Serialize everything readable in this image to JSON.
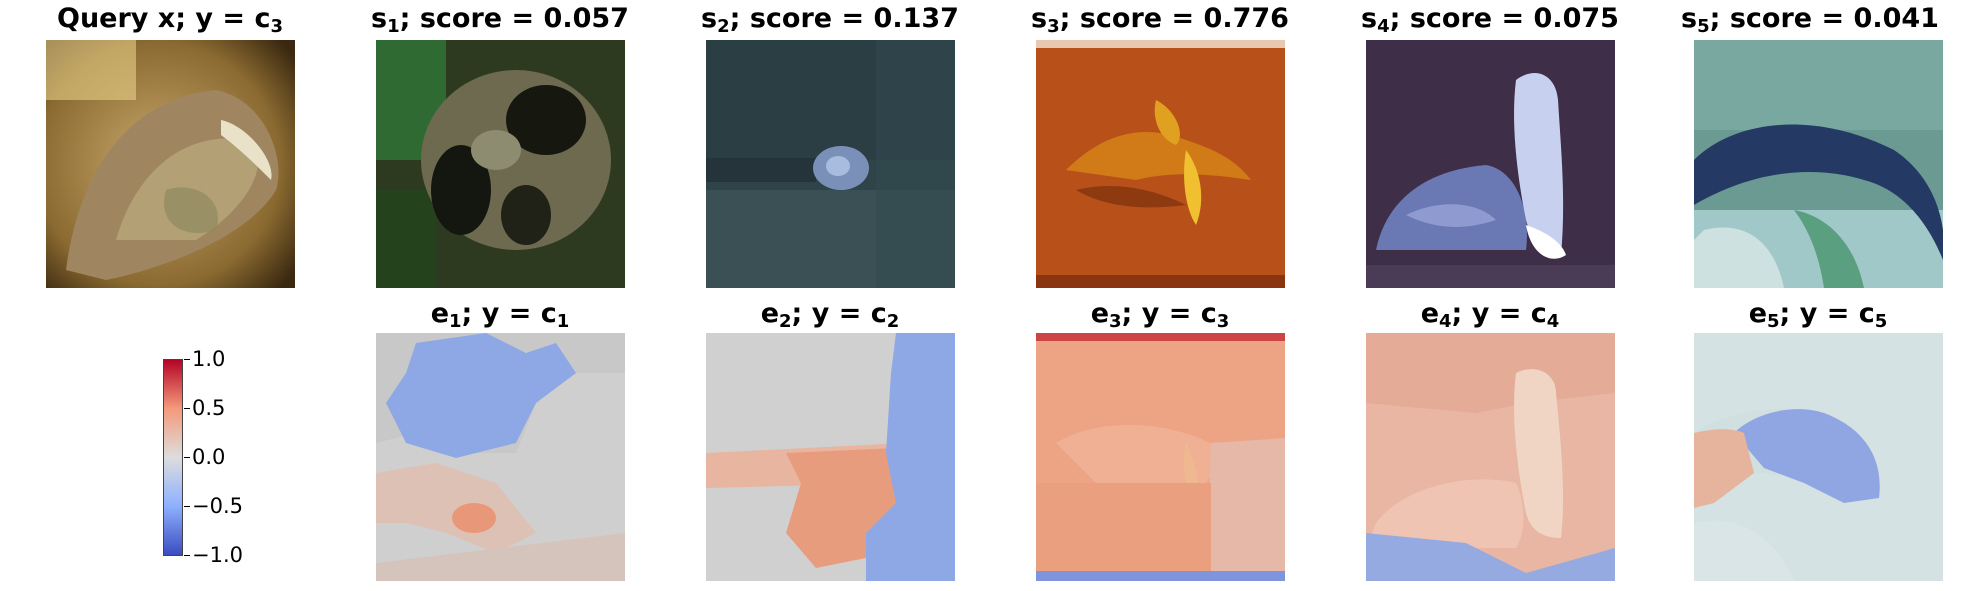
{
  "query": {
    "title_main": "Query x; y = c",
    "title_sub": "3"
  },
  "samples": [
    {
      "label": "s",
      "sub": "1",
      "score_text": "; score = 0.057",
      "score": 0.057
    },
    {
      "label": "s",
      "sub": "2",
      "score_text": "; score = 0.137",
      "score": 0.137
    },
    {
      "label": "s",
      "sub": "3",
      "score_text": "; score = 0.776",
      "score": 0.776
    },
    {
      "label": "s",
      "sub": "4",
      "score_text": "; score = 0.075",
      "score": 0.075
    },
    {
      "label": "s",
      "sub": "5",
      "score_text": "; score = 0.041",
      "score": 0.041
    }
  ],
  "explanations": [
    {
      "label": "e",
      "sub": "1",
      "mid": "; y = c",
      "class_sub": "1"
    },
    {
      "label": "e",
      "sub": "2",
      "mid": "; y = c",
      "class_sub": "2"
    },
    {
      "label": "e",
      "sub": "3",
      "mid": "; y = c",
      "class_sub": "3"
    },
    {
      "label": "e",
      "sub": "4",
      "mid": "; y = c",
      "class_sub": "4"
    },
    {
      "label": "e",
      "sub": "5",
      "mid": "; y = c",
      "class_sub": "5"
    }
  ],
  "colorbar": {
    "ticks": [
      "1.0",
      "0.5",
      "0.0",
      "−0.5",
      "−1.0"
    ],
    "range": [
      -1.0,
      1.0
    ],
    "colormap": "coolwarm",
    "colors": {
      "high": "#b40426",
      "mid_high": "#f49a7b",
      "zero": "#dddddd",
      "mid_low": "#8db0fe",
      "low": "#3b4cc0"
    }
  }
}
